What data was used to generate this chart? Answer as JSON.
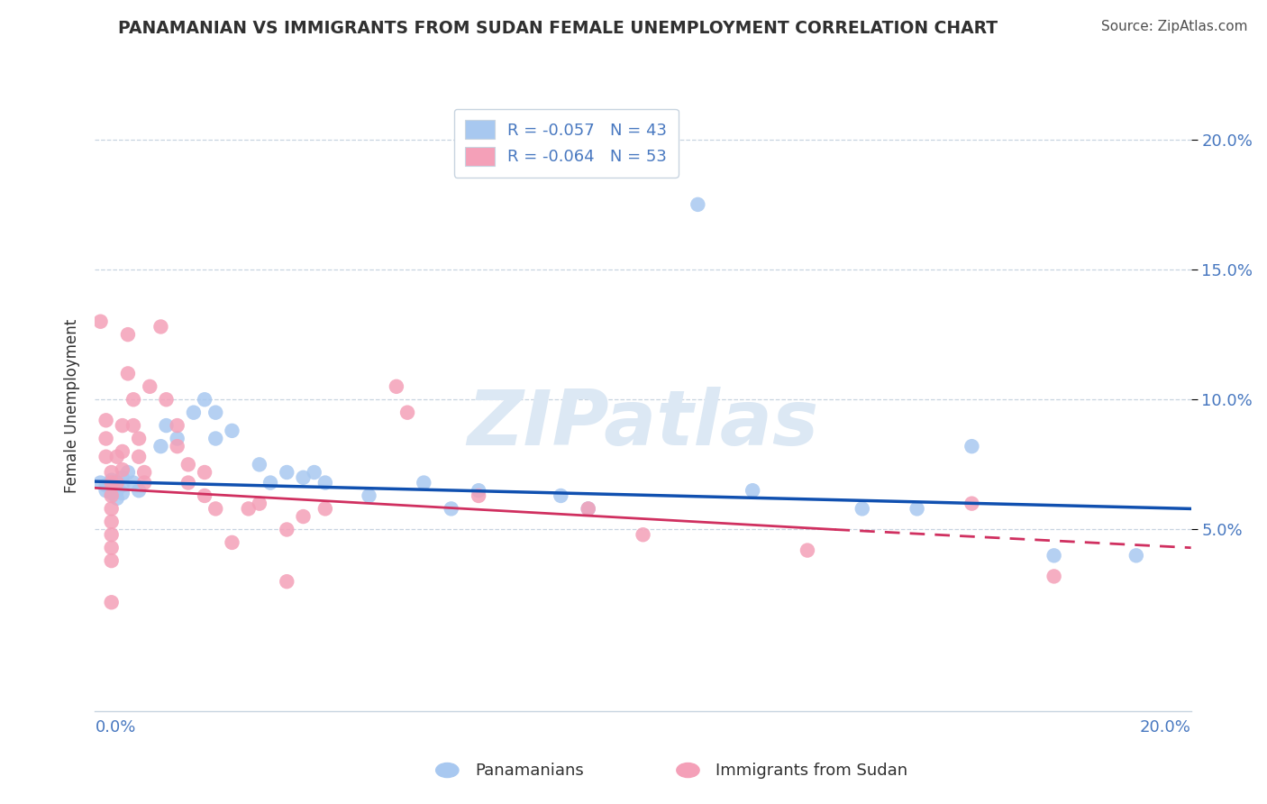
{
  "title": "PANAMANIAN VS IMMIGRANTS FROM SUDAN FEMALE UNEMPLOYMENT CORRELATION CHART",
  "source": "Source: ZipAtlas.com",
  "ylabel": "Female Unemployment",
  "xmin": 0.0,
  "xmax": 0.2,
  "ymin": -0.02,
  "ymax": 0.215,
  "yticks": [
    0.05,
    0.1,
    0.15,
    0.2
  ],
  "ytick_labels": [
    "5.0%",
    "10.0%",
    "15.0%",
    "20.0%"
  ],
  "blue_scatter": [
    [
      0.001,
      0.068
    ],
    [
      0.002,
      0.067
    ],
    [
      0.002,
      0.065
    ],
    [
      0.003,
      0.069
    ],
    [
      0.003,
      0.066
    ],
    [
      0.003,
      0.064
    ],
    [
      0.004,
      0.068
    ],
    [
      0.004,
      0.065
    ],
    [
      0.004,
      0.062
    ],
    [
      0.005,
      0.07
    ],
    [
      0.005,
      0.067
    ],
    [
      0.005,
      0.064
    ],
    [
      0.006,
      0.072
    ],
    [
      0.007,
      0.068
    ],
    [
      0.008,
      0.065
    ],
    [
      0.012,
      0.082
    ],
    [
      0.013,
      0.09
    ],
    [
      0.015,
      0.085
    ],
    [
      0.018,
      0.095
    ],
    [
      0.02,
      0.1
    ],
    [
      0.022,
      0.095
    ],
    [
      0.022,
      0.085
    ],
    [
      0.025,
      0.088
    ],
    [
      0.03,
      0.075
    ],
    [
      0.032,
      0.068
    ],
    [
      0.035,
      0.072
    ],
    [
      0.038,
      0.07
    ],
    [
      0.04,
      0.072
    ],
    [
      0.042,
      0.068
    ],
    [
      0.05,
      0.063
    ],
    [
      0.06,
      0.068
    ],
    [
      0.065,
      0.058
    ],
    [
      0.07,
      0.065
    ],
    [
      0.085,
      0.063
    ],
    [
      0.09,
      0.058
    ],
    [
      0.11,
      0.175
    ],
    [
      0.12,
      0.065
    ],
    [
      0.14,
      0.058
    ],
    [
      0.15,
      0.058
    ],
    [
      0.16,
      0.082
    ],
    [
      0.175,
      0.04
    ],
    [
      0.19,
      0.04
    ]
  ],
  "pink_scatter": [
    [
      0.001,
      0.13
    ],
    [
      0.002,
      0.092
    ],
    [
      0.002,
      0.085
    ],
    [
      0.002,
      0.078
    ],
    [
      0.003,
      0.072
    ],
    [
      0.003,
      0.068
    ],
    [
      0.003,
      0.063
    ],
    [
      0.003,
      0.058
    ],
    [
      0.003,
      0.053
    ],
    [
      0.003,
      0.048
    ],
    [
      0.003,
      0.043
    ],
    [
      0.003,
      0.038
    ],
    [
      0.003,
      0.022
    ],
    [
      0.004,
      0.078
    ],
    [
      0.004,
      0.068
    ],
    [
      0.005,
      0.09
    ],
    [
      0.005,
      0.08
    ],
    [
      0.005,
      0.073
    ],
    [
      0.006,
      0.125
    ],
    [
      0.006,
      0.11
    ],
    [
      0.007,
      0.1
    ],
    [
      0.007,
      0.09
    ],
    [
      0.008,
      0.085
    ],
    [
      0.008,
      0.078
    ],
    [
      0.009,
      0.072
    ],
    [
      0.009,
      0.068
    ],
    [
      0.01,
      0.105
    ],
    [
      0.012,
      0.128
    ],
    [
      0.013,
      0.1
    ],
    [
      0.015,
      0.09
    ],
    [
      0.015,
      0.082
    ],
    [
      0.017,
      0.075
    ],
    [
      0.017,
      0.068
    ],
    [
      0.02,
      0.072
    ],
    [
      0.02,
      0.063
    ],
    [
      0.022,
      0.058
    ],
    [
      0.025,
      0.045
    ],
    [
      0.028,
      0.058
    ],
    [
      0.03,
      0.06
    ],
    [
      0.035,
      0.05
    ],
    [
      0.035,
      0.03
    ],
    [
      0.038,
      0.055
    ],
    [
      0.042,
      0.058
    ],
    [
      0.055,
      0.105
    ],
    [
      0.057,
      0.095
    ],
    [
      0.07,
      0.063
    ],
    [
      0.09,
      0.058
    ],
    [
      0.1,
      0.048
    ],
    [
      0.13,
      0.042
    ],
    [
      0.16,
      0.06
    ],
    [
      0.175,
      0.032
    ]
  ],
  "blue_line_pts": [
    [
      0.0,
      0.0685
    ],
    [
      0.2,
      0.058
    ]
  ],
  "pink_line_solid_pts": [
    [
      0.0,
      0.066
    ],
    [
      0.135,
      0.05
    ]
  ],
  "pink_line_dashed_pts": [
    [
      0.135,
      0.05
    ],
    [
      0.2,
      0.043
    ]
  ],
  "blue_dot_color": "#a8c8f0",
  "pink_dot_color": "#f4a0b8",
  "blue_line_color": "#1050b0",
  "pink_line_color": "#d03060",
  "legend_blue_color": "#a8c8f0",
  "legend_pink_color": "#f4a0b8",
  "watermark_text": "ZIPatlas",
  "watermark_color": "#dce8f4",
  "grid_color": "#c8d4e0",
  "tick_color": "#4878c0",
  "title_color": "#303030",
  "source_color": "#505050",
  "label_color": "#303030"
}
